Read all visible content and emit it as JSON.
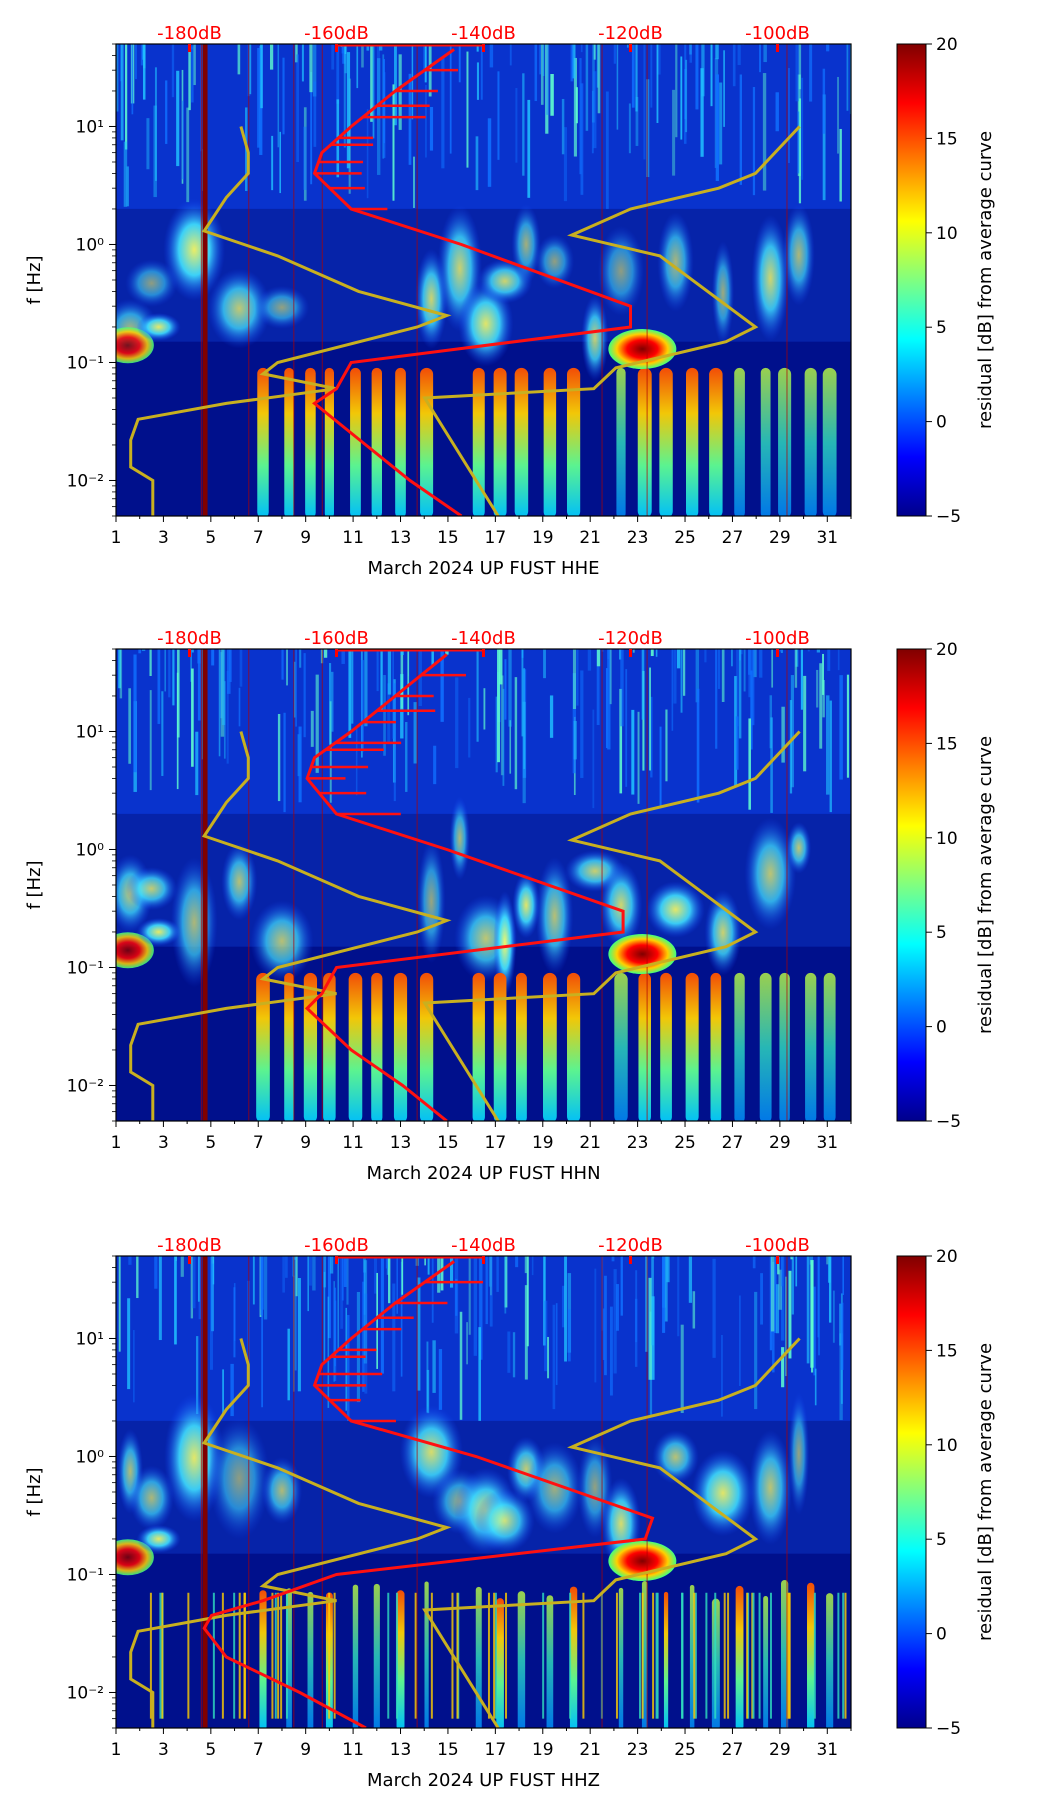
{
  "figure": {
    "colorbar": {
      "label": "residual [dB] from average curve",
      "ticks": [
        20,
        15,
        10,
        5,
        0,
        -5
      ],
      "tick_labels": [
        "20",
        "15",
        "10",
        "5",
        "0",
        "−5"
      ],
      "colors": [
        "#00008b",
        "#0000ff",
        "#0080ff",
        "#00ffff",
        "#80ff80",
        "#ffff00",
        "#ff8000",
        "#ff0000",
        "#800000"
      ]
    },
    "y_axis": {
      "label": "f [Hz]",
      "tick_labels": [
        "10¹",
        "10⁰",
        "10⁻¹",
        "10⁻²"
      ]
    },
    "x_tick_labels": [
      "1",
      "3",
      "5",
      "7",
      "9",
      "11",
      "13",
      "15",
      "17",
      "19",
      "21",
      "23",
      "25",
      "27",
      "29",
      "31"
    ],
    "db_tick_labels": [
      "-180dB",
      "-160dB",
      "-140dB",
      "-120dB",
      "-100dB"
    ]
  },
  "chart_data": [
    {
      "type": "heatmap",
      "xlabel": "March 2024 UP FUST  HHE",
      "ylabel": "f [Hz]",
      "x_range": [
        1,
        32
      ],
      "y_range_hz": [
        0.005,
        50
      ],
      "color_range_db": [
        -5,
        20
      ],
      "secondary_x_db": [
        -190,
        -90
      ],
      "red_curve": {
        "f": [
          0.005,
          0.01,
          0.02,
          0.045,
          0.06,
          0.1,
          0.2,
          0.3,
          1,
          2,
          4,
          6,
          10,
          20,
          45
        ],
        "db": [
          -143,
          -150,
          -156,
          -163,
          -160,
          -158,
          -120,
          -120,
          -143,
          -158,
          -163,
          -162,
          -158,
          -152,
          -144
        ]
      },
      "model_curves": {
        "low": {
          "f": [
            0.005,
            0.01,
            0.013,
            0.022,
            0.033,
            0.045,
            0.06,
            0.08,
            0.1,
            0.2,
            0.25,
            0.4,
            0.8,
            1.3,
            2.5,
            4,
            6,
            10
          ],
          "db": [
            -185,
            -185,
            -188,
            -188,
            -187,
            -175,
            -160,
            -170,
            -168,
            -149,
            -145,
            -157,
            -168,
            -178,
            -175,
            -172,
            -172,
            -173
          ]
        },
        "high": {
          "f": [
            0.005,
            0.05,
            0.06,
            0.09,
            0.15,
            0.2,
            0.8,
            1.2,
            2.0,
            3.0,
            4.0,
            10
          ],
          "db": [
            -138,
            -148,
            -125,
            -122,
            -107,
            -103,
            -116,
            -128,
            -120,
            -108,
            -103,
            -97
          ]
        }
      }
    },
    {
      "type": "heatmap",
      "xlabel": "March 2024 UP FUST  HHN",
      "ylabel": "f [Hz]",
      "x_range": [
        1,
        32
      ],
      "y_range_hz": [
        0.005,
        50
      ],
      "color_range_db": [
        -5,
        20
      ],
      "secondary_x_db": [
        -190,
        -90
      ],
      "red_curve": {
        "f": [
          0.005,
          0.01,
          0.02,
          0.045,
          0.06,
          0.1,
          0.2,
          0.3,
          1,
          2,
          4,
          6,
          10,
          20,
          45
        ],
        "db": [
          -145,
          -151,
          -158,
          -164,
          -162,
          -160,
          -121,
          -121,
          -145,
          -160,
          -164,
          -163,
          -158,
          -152,
          -145
        ]
      },
      "model_curves": {
        "low": {
          "f": [
            0.005,
            0.01,
            0.013,
            0.022,
            0.033,
            0.045,
            0.06,
            0.08,
            0.1,
            0.2,
            0.25,
            0.4,
            0.8,
            1.3,
            2.5,
            4,
            6,
            10
          ],
          "db": [
            -185,
            -185,
            -188,
            -188,
            -187,
            -175,
            -160,
            -170,
            -168,
            -149,
            -145,
            -157,
            -168,
            -178,
            -175,
            -172,
            -172,
            -173
          ]
        },
        "high": {
          "f": [
            0.005,
            0.05,
            0.06,
            0.09,
            0.15,
            0.2,
            0.8,
            1.2,
            2.0,
            3.0,
            4.0,
            10
          ],
          "db": [
            -138,
            -148,
            -125,
            -122,
            -107,
            -103,
            -116,
            -128,
            -120,
            -108,
            -103,
            -97
          ]
        }
      }
    },
    {
      "type": "heatmap",
      "xlabel": "March 2024 UP FUST  HHZ",
      "ylabel": "f [Hz]",
      "x_range": [
        1,
        32
      ],
      "y_range_hz": [
        0.005,
        50
      ],
      "color_range_db": [
        -5,
        20
      ],
      "secondary_x_db": [
        -190,
        -90
      ],
      "red_curve": {
        "f": [
          0.005,
          0.01,
          0.02,
          0.035,
          0.045,
          0.06,
          0.1,
          0.2,
          0.3,
          1,
          2,
          4,
          6,
          10,
          20,
          45
        ],
        "db": [
          -156,
          -165,
          -175,
          -178,
          -177,
          -170,
          -160,
          -118,
          -117,
          -141,
          -158,
          -163,
          -162,
          -158,
          -152,
          -144
        ]
      },
      "model_curves": {
        "low": {
          "f": [
            0.005,
            0.01,
            0.013,
            0.022,
            0.033,
            0.045,
            0.06,
            0.08,
            0.1,
            0.2,
            0.25,
            0.4,
            0.8,
            1.3,
            2.5,
            4,
            6,
            10
          ],
          "db": [
            -185,
            -185,
            -188,
            -188,
            -187,
            -175,
            -160,
            -170,
            -168,
            -149,
            -145,
            -157,
            -168,
            -178,
            -175,
            -172,
            -172,
            -173
          ]
        },
        "high": {
          "f": [
            0.005,
            0.05,
            0.06,
            0.09,
            0.15,
            0.2,
            0.8,
            1.2,
            2.0,
            3.0,
            4.0,
            10
          ],
          "db": [
            -138,
            -148,
            -125,
            -122,
            -107,
            -103,
            -116,
            -128,
            -120,
            -108,
            -103,
            -97
          ]
        }
      }
    }
  ]
}
